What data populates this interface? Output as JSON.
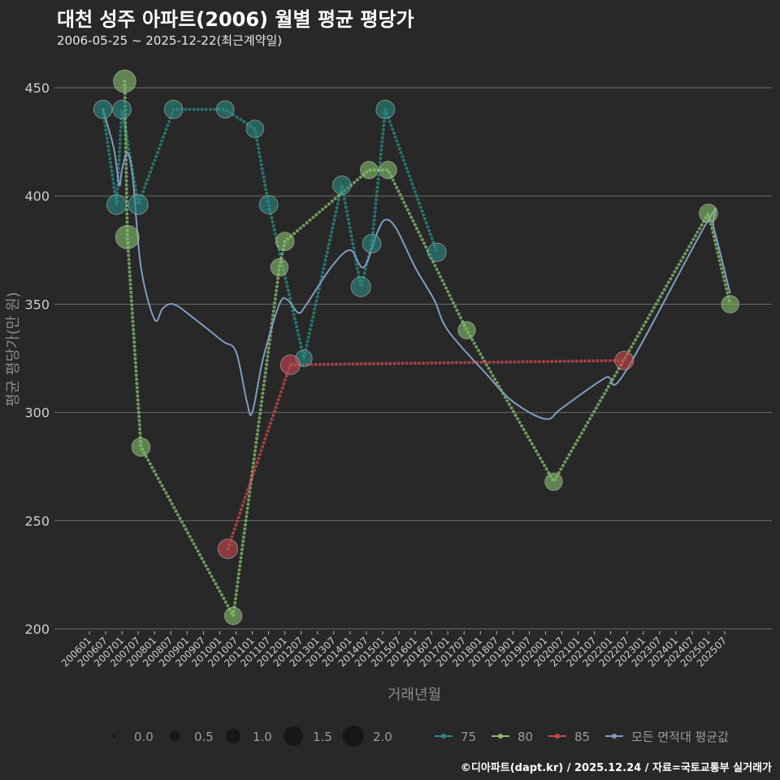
{
  "title": "대천 성주 아파트(2006) 월별 평균 평당가",
  "subtitle": "2006-05-25 ~ 2025-12-22(최근계약일)",
  "footer": "©디아파트(dapt.kr) / 2025.12.24 / 자료=국토교통부 실거래가",
  "colors": {
    "background": "#282828",
    "grid": "#6a6a6a",
    "s75": "#2a8a84",
    "s80": "#86c06c",
    "s85": "#c84a4e",
    "avg": "#7f9cc2"
  },
  "chart_data": {
    "type": "scatter",
    "ylabel": "평균 평당가(만 원)",
    "xlabel": "거래년월",
    "ylim": [
      195,
      460
    ],
    "yticks": [
      200,
      250,
      300,
      350,
      400,
      450
    ],
    "xticks": [
      "200601",
      "200607",
      "200701",
      "200707",
      "200801",
      "200807",
      "200901",
      "200907",
      "201001",
      "201007",
      "201101",
      "201107",
      "201201",
      "201207",
      "201301",
      "201307",
      "201401",
      "201407",
      "201501",
      "201507",
      "201601",
      "201607",
      "201701",
      "201707",
      "201801",
      "201807",
      "201901",
      "201907",
      "202001",
      "202007",
      "202101",
      "202107",
      "202201",
      "202207",
      "202301",
      "202307",
      "202401",
      "202407",
      "202501",
      "202507"
    ],
    "size_legend": [
      "0.0",
      "0.5",
      "1.0",
      "1.5",
      "2.0"
    ],
    "series": [
      {
        "name": "75",
        "color_key": "s75",
        "points": [
          [
            "2006-06",
            440,
            1.2
          ],
          [
            "2006-11",
            396,
            1.3
          ],
          [
            "2007-01",
            440,
            1.2
          ],
          [
            "2007-07",
            396,
            1.3
          ],
          [
            "2008-08",
            440,
            1.2
          ],
          [
            "2010-03",
            440,
            1.1
          ],
          [
            "2011-02",
            431,
            1.1
          ],
          [
            "2011-07",
            396,
            1.2
          ],
          [
            "2012-08",
            325,
            1.0
          ],
          [
            "2013-10",
            405,
            1.2
          ],
          [
            "2014-05",
            358,
            1.3
          ],
          [
            "2014-09",
            378,
            1.2
          ],
          [
            "2015-02",
            440,
            1.2
          ],
          [
            "2016-09",
            374,
            1.2
          ]
        ]
      },
      {
        "name": "80",
        "color_key": "s80",
        "points": [
          [
            "2007-02",
            453,
            1.6
          ],
          [
            "2007-03",
            381,
            1.7
          ],
          [
            "2007-08",
            284,
            1.2
          ],
          [
            "2010-06",
            206,
            1.1
          ],
          [
            "2011-11",
            367,
            1.1
          ],
          [
            "2012-01",
            379,
            1.2
          ],
          [
            "2014-08",
            412,
            1.1
          ],
          [
            "2015-03",
            412,
            1.1
          ],
          [
            "2017-08",
            338,
            1.1
          ],
          [
            "2020-04",
            268,
            1.1
          ],
          [
            "2025-01",
            392,
            1.2
          ],
          [
            "2025-09",
            350,
            1.1
          ]
        ]
      },
      {
        "name": "85",
        "color_key": "s85",
        "points": [
          [
            "2010-04",
            237,
            1.3
          ],
          [
            "2012-03",
            322,
            1.3
          ],
          [
            "2022-06",
            324,
            1.2
          ]
        ]
      }
    ],
    "average_series": {
      "name": "모든 면적대 평균값",
      "color_key": "avg",
      "points": [
        [
          "2006-06",
          440
        ],
        [
          "2006-10",
          422
        ],
        [
          "2006-12",
          405
        ],
        [
          "2007-01",
          412
        ],
        [
          "2007-03",
          420
        ],
        [
          "2007-05",
          408
        ],
        [
          "2007-08",
          367
        ],
        [
          "2008-01",
          343
        ],
        [
          "2008-04",
          348
        ],
        [
          "2008-08",
          350
        ],
        [
          "2009-03",
          344
        ],
        [
          "2010-02",
          333
        ],
        [
          "2010-07",
          328
        ],
        [
          "2010-11",
          305
        ],
        [
          "2011-01",
          300
        ],
        [
          "2011-05",
          325
        ],
        [
          "2011-11",
          350
        ],
        [
          "2012-02",
          352
        ],
        [
          "2012-06",
          346
        ],
        [
          "2012-09",
          350
        ],
        [
          "2013-06",
          367
        ],
        [
          "2014-01",
          375
        ],
        [
          "2014-06",
          367
        ],
        [
          "2014-11",
          383
        ],
        [
          "2015-02",
          389
        ],
        [
          "2015-06",
          385
        ],
        [
          "2016-01",
          367
        ],
        [
          "2016-08",
          352
        ],
        [
          "2017-01",
          338
        ],
        [
          "2018-03",
          318
        ],
        [
          "2019-01",
          305
        ],
        [
          "2020-01",
          297
        ],
        [
          "2020-07",
          302
        ],
        [
          "2021-11",
          316
        ],
        [
          "2022-06",
          318
        ],
        [
          "2025-01",
          389
        ],
        [
          "2025-03",
          385
        ],
        [
          "2025-09",
          355
        ]
      ]
    },
    "legend_lines": [
      "75",
      "80",
      "85",
      "모든 면적대 평균값"
    ]
  }
}
